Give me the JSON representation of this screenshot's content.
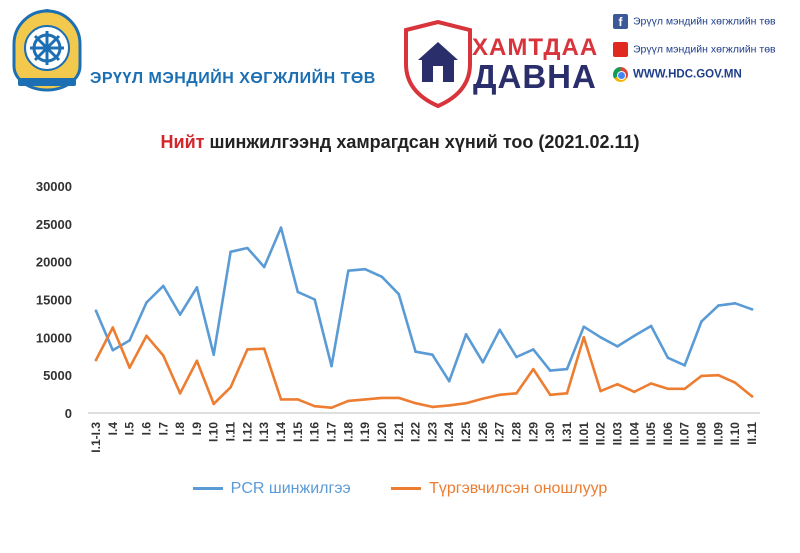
{
  "header": {
    "org_name": "ЭРҮҮЛ МЭНДИЙН ХӨГЖЛИЙН ТӨВ",
    "badge_line1": "ХАМТДАА",
    "badge_line2": "ДАВНА",
    "social": [
      {
        "icon": "facebook-icon",
        "label": "Эрүүл мэндийн хөгжлийн төв"
      },
      {
        "icon": "youtube-icon",
        "label": "Эрүүл мэндийн хөгжлийн төв"
      },
      {
        "icon": "chrome-icon",
        "label": "WWW.HDC.GOV.MN"
      }
    ]
  },
  "colors": {
    "accent_blue": "#1c6fb3",
    "accent_red": "#d4252b",
    "series_pcr": "#5b9bd5",
    "series_rapid": "#ed7d31"
  },
  "chart_data": {
    "type": "line",
    "title_highlight": "Нийт",
    "title_rest": " шинжилгээнд хамрагдсан хүний тоо (2021.02.11)",
    "xlabel": "",
    "ylabel": "",
    "ylim": [
      0,
      30000
    ],
    "yticks": [
      0,
      5000,
      10000,
      15000,
      20000,
      25000,
      30000
    ],
    "grid": false,
    "legend_position": "bottom",
    "categories": [
      "I.1-I.3",
      "I.4",
      "I.5",
      "I.6",
      "I.7",
      "I.8",
      "I.9",
      "I.10",
      "I.11",
      "I.12",
      "I.13",
      "I.14",
      "I.15",
      "I.16",
      "I.17",
      "I.18",
      "I.19",
      "I.20",
      "I.21",
      "I.22",
      "I.23",
      "I.24",
      "I.25",
      "I.26",
      "I.27",
      "I.28",
      "I.29",
      "I.30",
      "I.31",
      "II.01",
      "II.02",
      "II.03",
      "II.04",
      "II.05",
      "II.06",
      "II.07",
      "II.08",
      "II.09",
      "II.10",
      "II.11"
    ],
    "series": [
      {
        "name": "PCR шинжилгээ",
        "color": "#5b9bd5",
        "values": [
          13500,
          8300,
          9600,
          14600,
          16800,
          13000,
          16600,
          7700,
          21300,
          21800,
          19300,
          24500,
          16000,
          15000,
          6200,
          18800,
          19000,
          18000,
          15700,
          8100,
          7700,
          4200,
          10400,
          6700,
          11000,
          7400,
          8400,
          5600,
          5800,
          11400,
          10000,
          8800,
          10200,
          11500,
          7300,
          6300,
          12100,
          14200,
          14500,
          13700
        ]
      },
      {
        "name": "Түргэвчилсэн оношлуур",
        "color": "#ed7d31",
        "values": [
          7000,
          11300,
          6000,
          10200,
          7600,
          2600,
          6900,
          1200,
          3400,
          8400,
          8500,
          1800,
          1800,
          900,
          700,
          1600,
          1800,
          2000,
          2000,
          1300,
          800,
          1000,
          1300,
          1900,
          2400,
          2600,
          5800,
          2400,
          2600,
          10000,
          2900,
          3800,
          2800,
          3900,
          3200,
          3200,
          4900,
          5000,
          4000,
          2200
        ]
      }
    ]
  }
}
